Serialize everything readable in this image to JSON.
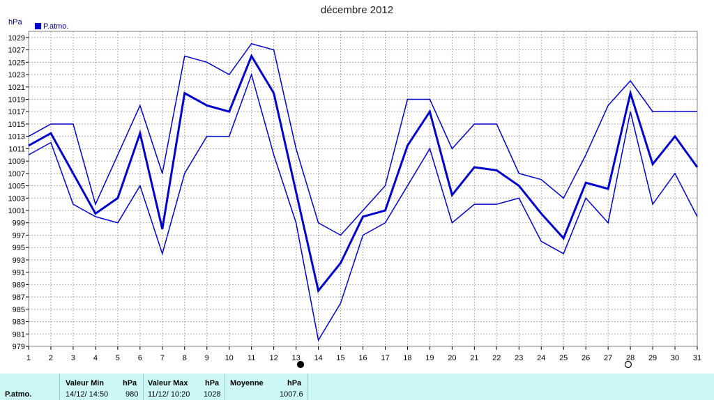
{
  "chart_data": {
    "type": "line",
    "title": "décembre 2012",
    "ylabel": "hPa",
    "legend": "P.atmo.",
    "legend_position": "top-left",
    "grid": true,
    "ylim": [
      979,
      1030
    ],
    "yticks": [
      979,
      981,
      983,
      985,
      987,
      989,
      991,
      993,
      995,
      997,
      999,
      1001,
      1003,
      1005,
      1007,
      1009,
      1011,
      1013,
      1015,
      1017,
      1019,
      1021,
      1023,
      1025,
      1027,
      1029
    ],
    "x": [
      1,
      2,
      3,
      4,
      5,
      6,
      7,
      8,
      9,
      10,
      11,
      12,
      13,
      14,
      15,
      16,
      17,
      18,
      19,
      20,
      21,
      22,
      23,
      24,
      25,
      26,
      27,
      28,
      29,
      30,
      31
    ],
    "series": [
      {
        "name": "P.atmo.",
        "role": "max",
        "values": [
          1013,
          1015,
          1015,
          1002,
          1010,
          1018,
          1007,
          1026,
          1025,
          1023,
          1028,
          1027,
          1011,
          999,
          997,
          1001,
          1005,
          1019,
          1019,
          1011,
          1015,
          1015,
          1007,
          1006,
          1003,
          1010,
          1018,
          1022,
          1017,
          1017,
          1017
        ]
      },
      {
        "name": "P.atmo.",
        "role": "mean",
        "values": [
          1011.5,
          1013.5,
          1007,
          1000.5,
          1003,
          1013.5,
          998,
          1020,
          1018,
          1017,
          1026,
          1020,
          1004,
          988,
          992.5,
          1000,
          1001,
          1011.5,
          1017,
          1003.5,
          1008,
          1007.5,
          1005,
          1000.5,
          996.5,
          1005.5,
          1004.5,
          1020,
          1008.5,
          1013,
          1008
        ]
      },
      {
        "name": "P.atmo.",
        "role": "min",
        "values": [
          1010,
          1012,
          1002,
          1000,
          999,
          1005,
          994,
          1007,
          1013,
          1013,
          1023,
          1010,
          999,
          980,
          986,
          997,
          999,
          1005,
          1011,
          999,
          1002,
          1002,
          1003,
          996,
          994,
          1003,
          999,
          1017,
          1002,
          1007,
          1000
        ]
      }
    ],
    "markers": [
      {
        "day": 13.2,
        "style": "filled-circle"
      },
      {
        "day": 27.9,
        "style": "open-circle"
      }
    ],
    "colors": {
      "line": "#0000cc",
      "grid": "#aaaaaa",
      "axis": "#000000",
      "frame": "#808080"
    }
  },
  "stats": {
    "row_label": "P.atmo.",
    "min_header": "Valeur Min",
    "min_unit": "hPa",
    "min_date": "14/12/  14:50",
    "min_value": "980",
    "max_header": "Valeur Max",
    "max_unit": "hPa",
    "max_date": "11/12/  10:20",
    "max_value": "1028",
    "avg_header": "Moyenne",
    "avg_unit": "hPa",
    "avg_value": "1007.6"
  }
}
